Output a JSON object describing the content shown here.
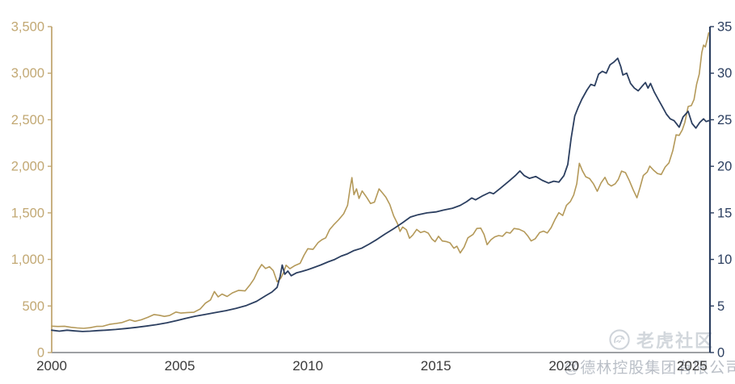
{
  "watermark": {
    "community_label": "老虎社区",
    "attribution": "@德林控股集团有限公司"
  },
  "colors": {
    "gold_series": "#b49959",
    "navy_series": "#2c3f60",
    "left_axis": "#c2a873",
    "right_axis": "#2c3f60",
    "x_axis_line": "#63676d",
    "x_label": "#3a3a3a",
    "watermark_gray": "#cfd4da",
    "background": "#ffffff"
  },
  "chart_data": {
    "type": "line",
    "title": "",
    "subtitle": "",
    "legend": "none",
    "grid": false,
    "x_axis": {
      "label": "",
      "range": [
        2000,
        2025.7
      ],
      "tick_years": [
        2000,
        2005,
        2010,
        2015,
        2020,
        2025
      ],
      "tick_labels": [
        "2000",
        "2005",
        "2010",
        "2015",
        "2020",
        "2025"
      ]
    },
    "y_axis_left": {
      "label": "",
      "range": [
        0,
        3500
      ],
      "tick_values": [
        0,
        500,
        1000,
        1500,
        2000,
        2500,
        3000,
        3500
      ],
      "tick_labels": [
        "0",
        "500",
        "1,000",
        "1,500",
        "2,000",
        "2,500",
        "3,000",
        "3,500"
      ],
      "color": "#c2a873"
    },
    "y_axis_right": {
      "label": "",
      "range": [
        0,
        35
      ],
      "tick_values": [
        0,
        5,
        10,
        15,
        20,
        25,
        30,
        35
      ],
      "tick_labels": [
        "0",
        "5",
        "10",
        "15",
        "20",
        "25",
        "30",
        "35"
      ],
      "color": "#2c3f60"
    },
    "series": [
      {
        "name": "gold-line",
        "axis": "left",
        "color": "#b49959",
        "width": 1.6,
        "points": [
          [
            2000.0,
            283
          ],
          [
            2000.25,
            280
          ],
          [
            2000.5,
            282
          ],
          [
            2000.75,
            271
          ],
          [
            2001.0,
            264
          ],
          [
            2001.25,
            260
          ],
          [
            2001.5,
            267
          ],
          [
            2001.75,
            281
          ],
          [
            2002.0,
            282
          ],
          [
            2002.25,
            302
          ],
          [
            2002.5,
            312
          ],
          [
            2002.75,
            322
          ],
          [
            2003.05,
            352
          ],
          [
            2003.25,
            335
          ],
          [
            2003.5,
            352
          ],
          [
            2003.75,
            378
          ],
          [
            2004.0,
            408
          ],
          [
            2004.2,
            400
          ],
          [
            2004.4,
            388
          ],
          [
            2004.6,
            398
          ],
          [
            2004.85,
            435
          ],
          [
            2005.05,
            424
          ],
          [
            2005.3,
            430
          ],
          [
            2005.55,
            432
          ],
          [
            2005.8,
            468
          ],
          [
            2006.0,
            530
          ],
          [
            2006.2,
            565
          ],
          [
            2006.35,
            655
          ],
          [
            2006.5,
            598
          ],
          [
            2006.65,
            628
          ],
          [
            2006.85,
            602
          ],
          [
            2007.05,
            640
          ],
          [
            2007.3,
            668
          ],
          [
            2007.55,
            662
          ],
          [
            2007.75,
            730
          ],
          [
            2007.9,
            790
          ],
          [
            2008.05,
            880
          ],
          [
            2008.2,
            945
          ],
          [
            2008.35,
            903
          ],
          [
            2008.5,
            922
          ],
          [
            2008.65,
            880
          ],
          [
            2008.8,
            760
          ],
          [
            2008.95,
            800
          ],
          [
            2009.05,
            858
          ],
          [
            2009.15,
            938
          ],
          [
            2009.3,
            900
          ],
          [
            2009.5,
            935
          ],
          [
            2009.7,
            958
          ],
          [
            2009.85,
            1045
          ],
          [
            2010.0,
            1115
          ],
          [
            2010.2,
            1108
          ],
          [
            2010.4,
            1180
          ],
          [
            2010.55,
            1212
          ],
          [
            2010.7,
            1232
          ],
          [
            2010.85,
            1320
          ],
          [
            2011.0,
            1368
          ],
          [
            2011.2,
            1425
          ],
          [
            2011.4,
            1490
          ],
          [
            2011.55,
            1580
          ],
          [
            2011.65,
            1760
          ],
          [
            2011.72,
            1878
          ],
          [
            2011.8,
            1695
          ],
          [
            2011.9,
            1758
          ],
          [
            2012.0,
            1655
          ],
          [
            2012.12,
            1735
          ],
          [
            2012.3,
            1665
          ],
          [
            2012.45,
            1600
          ],
          [
            2012.6,
            1615
          ],
          [
            2012.78,
            1758
          ],
          [
            2012.92,
            1712
          ],
          [
            2013.05,
            1668
          ],
          [
            2013.2,
            1590
          ],
          [
            2013.35,
            1468
          ],
          [
            2013.5,
            1385
          ],
          [
            2013.6,
            1300
          ],
          [
            2013.7,
            1348
          ],
          [
            2013.85,
            1318
          ],
          [
            2013.97,
            1228
          ],
          [
            2014.1,
            1262
          ],
          [
            2014.25,
            1322
          ],
          [
            2014.4,
            1288
          ],
          [
            2014.55,
            1302
          ],
          [
            2014.7,
            1282
          ],
          [
            2014.85,
            1218
          ],
          [
            2014.97,
            1190
          ],
          [
            2015.1,
            1248
          ],
          [
            2015.25,
            1198
          ],
          [
            2015.4,
            1192
          ],
          [
            2015.55,
            1178
          ],
          [
            2015.7,
            1120
          ],
          [
            2015.82,
            1142
          ],
          [
            2015.95,
            1070
          ],
          [
            2016.1,
            1132
          ],
          [
            2016.25,
            1232
          ],
          [
            2016.45,
            1268
          ],
          [
            2016.6,
            1332
          ],
          [
            2016.75,
            1336
          ],
          [
            2016.88,
            1268
          ],
          [
            2017.0,
            1158
          ],
          [
            2017.15,
            1212
          ],
          [
            2017.3,
            1242
          ],
          [
            2017.45,
            1256
          ],
          [
            2017.6,
            1248
          ],
          [
            2017.75,
            1292
          ],
          [
            2017.9,
            1282
          ],
          [
            2018.05,
            1332
          ],
          [
            2018.25,
            1324
          ],
          [
            2018.45,
            1298
          ],
          [
            2018.6,
            1248
          ],
          [
            2018.72,
            1198
          ],
          [
            2018.88,
            1222
          ],
          [
            2019.05,
            1288
          ],
          [
            2019.2,
            1304
          ],
          [
            2019.35,
            1284
          ],
          [
            2019.5,
            1342
          ],
          [
            2019.65,
            1428
          ],
          [
            2019.8,
            1502
          ],
          [
            2019.95,
            1472
          ],
          [
            2020.1,
            1582
          ],
          [
            2020.25,
            1622
          ],
          [
            2020.38,
            1692
          ],
          [
            2020.5,
            1812
          ],
          [
            2020.6,
            2032
          ],
          [
            2020.72,
            1952
          ],
          [
            2020.85,
            1888
          ],
          [
            2021.0,
            1868
          ],
          [
            2021.15,
            1812
          ],
          [
            2021.3,
            1732
          ],
          [
            2021.45,
            1822
          ],
          [
            2021.6,
            1882
          ],
          [
            2021.72,
            1812
          ],
          [
            2021.85,
            1788
          ],
          [
            2022.0,
            1812
          ],
          [
            2022.12,
            1858
          ],
          [
            2022.25,
            1948
          ],
          [
            2022.4,
            1932
          ],
          [
            2022.55,
            1848
          ],
          [
            2022.7,
            1748
          ],
          [
            2022.85,
            1662
          ],
          [
            2022.97,
            1772
          ],
          [
            2023.1,
            1902
          ],
          [
            2023.25,
            1938
          ],
          [
            2023.35,
            2002
          ],
          [
            2023.5,
            1958
          ],
          [
            2023.65,
            1922
          ],
          [
            2023.8,
            1912
          ],
          [
            2023.95,
            1992
          ],
          [
            2024.1,
            2038
          ],
          [
            2024.25,
            2168
          ],
          [
            2024.38,
            2338
          ],
          [
            2024.5,
            2332
          ],
          [
            2024.62,
            2392
          ],
          [
            2024.72,
            2472
          ],
          [
            2024.85,
            2642
          ],
          [
            2024.97,
            2652
          ],
          [
            2025.08,
            2718
          ],
          [
            2025.18,
            2882
          ],
          [
            2025.28,
            2988
          ],
          [
            2025.38,
            3222
          ],
          [
            2025.45,
            3302
          ],
          [
            2025.52,
            3282
          ],
          [
            2025.6,
            3368
          ],
          [
            2025.65,
            3432
          ]
        ]
      },
      {
        "name": "dark-blue-line",
        "axis": "right",
        "color": "#2c3f60",
        "width": 1.8,
        "points": [
          [
            2000.0,
            2.4
          ],
          [
            2000.3,
            2.3
          ],
          [
            2000.6,
            2.4
          ],
          [
            2000.9,
            2.32
          ],
          [
            2001.2,
            2.26
          ],
          [
            2001.5,
            2.3
          ],
          [
            2001.8,
            2.36
          ],
          [
            2002.1,
            2.4
          ],
          [
            2002.5,
            2.48
          ],
          [
            2002.9,
            2.58
          ],
          [
            2003.3,
            2.7
          ],
          [
            2003.7,
            2.84
          ],
          [
            2004.1,
            3.0
          ],
          [
            2004.5,
            3.2
          ],
          [
            2004.9,
            3.45
          ],
          [
            2005.2,
            3.65
          ],
          [
            2005.6,
            3.9
          ],
          [
            2006.0,
            4.1
          ],
          [
            2006.4,
            4.3
          ],
          [
            2006.8,
            4.5
          ],
          [
            2007.2,
            4.75
          ],
          [
            2007.6,
            5.05
          ],
          [
            2008.0,
            5.5
          ],
          [
            2008.35,
            6.1
          ],
          [
            2008.6,
            6.5
          ],
          [
            2008.8,
            7.0
          ],
          [
            2008.92,
            8.2
          ],
          [
            2009.0,
            9.4
          ],
          [
            2009.1,
            8.4
          ],
          [
            2009.22,
            8.75
          ],
          [
            2009.35,
            8.25
          ],
          [
            2009.55,
            8.55
          ],
          [
            2009.75,
            8.7
          ],
          [
            2009.95,
            8.85
          ],
          [
            2010.2,
            9.1
          ],
          [
            2010.5,
            9.4
          ],
          [
            2010.8,
            9.75
          ],
          [
            2011.05,
            10.0
          ],
          [
            2011.3,
            10.35
          ],
          [
            2011.55,
            10.6
          ],
          [
            2011.8,
            10.95
          ],
          [
            2012.1,
            11.2
          ],
          [
            2012.4,
            11.65
          ],
          [
            2012.7,
            12.15
          ],
          [
            2013.0,
            12.7
          ],
          [
            2013.35,
            13.3
          ],
          [
            2013.7,
            13.95
          ],
          [
            2014.0,
            14.55
          ],
          [
            2014.3,
            14.8
          ],
          [
            2014.65,
            15.0
          ],
          [
            2015.0,
            15.1
          ],
          [
            2015.3,
            15.3
          ],
          [
            2015.65,
            15.5
          ],
          [
            2015.95,
            15.8
          ],
          [
            2016.2,
            16.2
          ],
          [
            2016.4,
            16.6
          ],
          [
            2016.55,
            16.4
          ],
          [
            2016.8,
            16.8
          ],
          [
            2017.1,
            17.2
          ],
          [
            2017.25,
            17.05
          ],
          [
            2017.5,
            17.6
          ],
          [
            2017.85,
            18.4
          ],
          [
            2018.1,
            19.0
          ],
          [
            2018.28,
            19.5
          ],
          [
            2018.45,
            19.0
          ],
          [
            2018.65,
            18.7
          ],
          [
            2018.9,
            18.9
          ],
          [
            2019.15,
            18.5
          ],
          [
            2019.4,
            18.2
          ],
          [
            2019.6,
            18.4
          ],
          [
            2019.8,
            18.3
          ],
          [
            2020.0,
            19.0
          ],
          [
            2020.15,
            20.2
          ],
          [
            2020.28,
            23.0
          ],
          [
            2020.42,
            25.4
          ],
          [
            2020.55,
            26.3
          ],
          [
            2020.7,
            27.2
          ],
          [
            2020.9,
            28.2
          ],
          [
            2021.05,
            28.8
          ],
          [
            2021.2,
            28.65
          ],
          [
            2021.35,
            29.9
          ],
          [
            2021.5,
            30.2
          ],
          [
            2021.65,
            30.0
          ],
          [
            2021.8,
            30.9
          ],
          [
            2021.95,
            31.2
          ],
          [
            2022.1,
            31.6
          ],
          [
            2022.22,
            30.7
          ],
          [
            2022.3,
            29.8
          ],
          [
            2022.45,
            30.0
          ],
          [
            2022.6,
            28.9
          ],
          [
            2022.75,
            28.4
          ],
          [
            2022.9,
            28.1
          ],
          [
            2023.05,
            28.6
          ],
          [
            2023.18,
            29.0
          ],
          [
            2023.28,
            28.4
          ],
          [
            2023.38,
            28.9
          ],
          [
            2023.52,
            28.0
          ],
          [
            2023.68,
            27.2
          ],
          [
            2023.82,
            26.5
          ],
          [
            2024.0,
            25.6
          ],
          [
            2024.15,
            25.1
          ],
          [
            2024.3,
            24.9
          ],
          [
            2024.5,
            24.2
          ],
          [
            2024.65,
            25.3
          ],
          [
            2024.85,
            25.9
          ],
          [
            2025.0,
            24.6
          ],
          [
            2025.15,
            24.1
          ],
          [
            2025.3,
            24.7
          ],
          [
            2025.45,
            25.1
          ],
          [
            2025.55,
            24.8
          ],
          [
            2025.65,
            24.9
          ]
        ]
      }
    ]
  }
}
